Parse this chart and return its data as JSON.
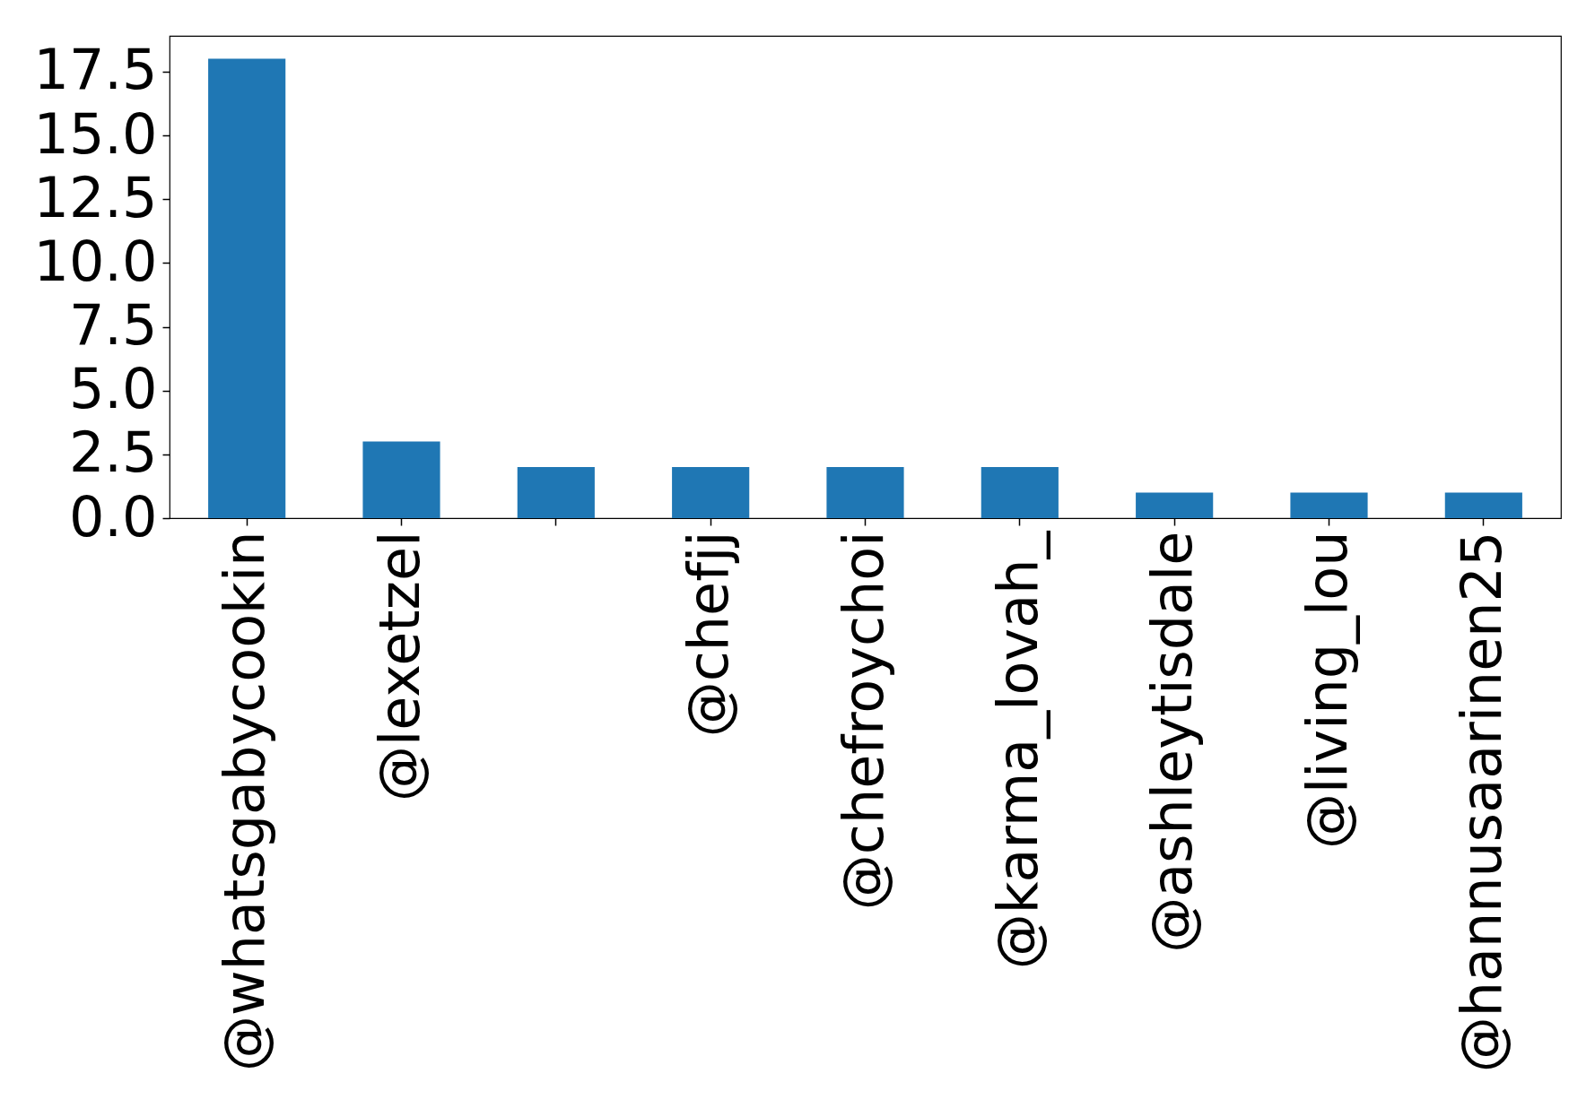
{
  "chart_data": {
    "type": "bar",
    "categories": [
      "@whatsgabycookin",
      "@lexetzel",
      null,
      "@chefjj",
      "@chefroychoi",
      "@karma_lovah_",
      "@ashleytisdale",
      "@living_lou",
      "@hannusaarinen25"
    ],
    "values": [
      18,
      3,
      2,
      2,
      2,
      2,
      1,
      1,
      1
    ],
    "color": "#1f77b4",
    "ylim": [
      0,
      18.9
    ],
    "yticks": [
      {
        "value": 0,
        "label": "0.0"
      },
      2.5,
      {
        "value": 5,
        "label": "5.0"
      },
      7.5,
      {
        "value": 10,
        "label": "10.0"
      },
      12.5,
      {
        "value": 15,
        "label": "15.0"
      },
      17.5
    ],
    "grid": false
  }
}
